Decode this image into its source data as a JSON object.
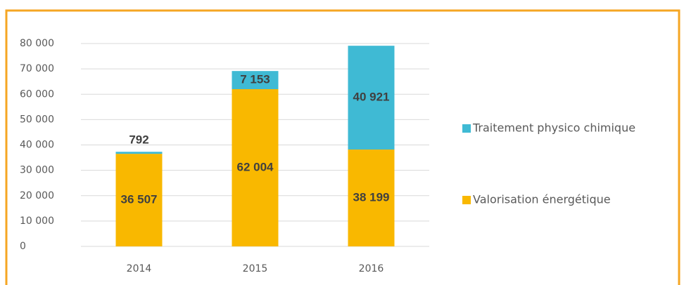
{
  "chart_data": {
    "type": "stacked_bar",
    "categories": [
      "2014",
      "2015",
      "2016"
    ],
    "series": [
      {
        "name": "Valorisation énergétique",
        "color": "#f9b800",
        "values": [
          36507,
          62004,
          38199
        ],
        "value_labels": [
          "36 507",
          "62 004",
          "38 199"
        ]
      },
      {
        "name": "Traitement physico chimique",
        "color": "#3fbad4",
        "values": [
          792,
          7153,
          40921
        ],
        "value_labels": [
          "792",
          "7 153",
          "40 921"
        ]
      }
    ],
    "ylim": [
      0,
      80000
    ],
    "yticks": [
      {
        "value": 0,
        "label": "0"
      },
      {
        "value": 10000,
        "label": "10 000"
      },
      {
        "value": 20000,
        "label": "20 000"
      },
      {
        "value": 30000,
        "label": "30 000"
      },
      {
        "value": 40000,
        "label": "40 000"
      },
      {
        "value": 50000,
        "label": "50 000"
      },
      {
        "value": 60000,
        "label": "60 000"
      },
      {
        "value": 70000,
        "label": "70 000"
      },
      {
        "value": 80000,
        "label": "80 000"
      }
    ],
    "grid": true,
    "legend": "right"
  }
}
